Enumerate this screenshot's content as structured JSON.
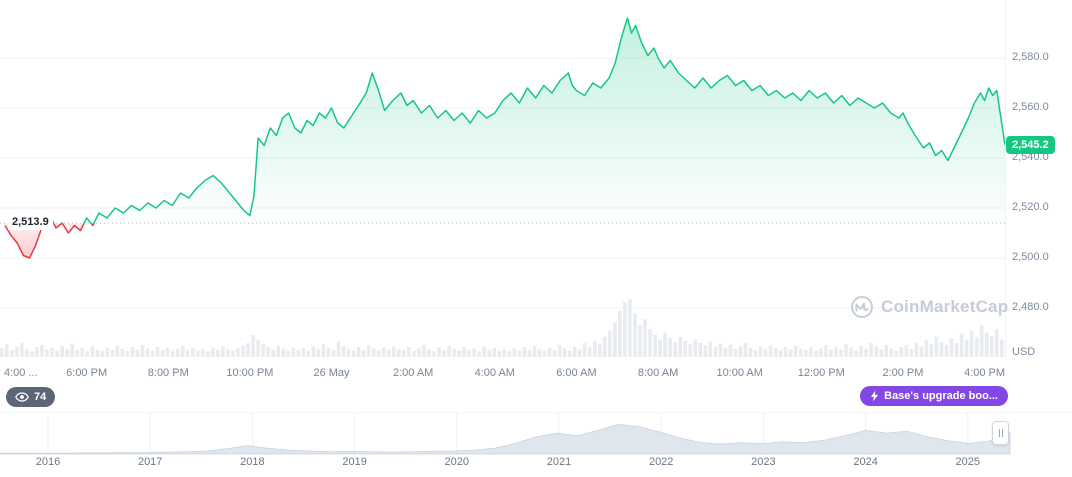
{
  "chart": {
    "open_price_label": "2,513.9",
    "current_price_label": "2,545.2",
    "currency_label": "USD"
  },
  "badges": {
    "views_count": "74",
    "annotation_label": "Base's upgrade boo..."
  },
  "watermark": "CoinMarketCap",
  "chart_data": {
    "type": "line",
    "title": "",
    "open_price": 2513.9,
    "current_price": 2545.2,
    "x_range_hours": [
      0,
      24.5
    ],
    "ylim": [
      2474,
      2598
    ],
    "colors": {
      "up": "#16c784",
      "down": "#ea3943",
      "open_line": "#b8bfca",
      "volume": "#e8ebf0",
      "navigator_fill": "#dfe6ee",
      "grid": "#f0f2f5"
    },
    "x_ticks": [
      {
        "hour": 0,
        "label": "4:00 ..."
      },
      {
        "hour": 2,
        "label": "6:00 PM"
      },
      {
        "hour": 4,
        "label": "8:00 PM"
      },
      {
        "hour": 6,
        "label": "10:00 PM"
      },
      {
        "hour": 8,
        "label": "26 May"
      },
      {
        "hour": 10,
        "label": "2:00 AM"
      },
      {
        "hour": 12,
        "label": "4:00 AM"
      },
      {
        "hour": 14,
        "label": "6:00 AM"
      },
      {
        "hour": 16,
        "label": "8:00 AM"
      },
      {
        "hour": 18,
        "label": "10:00 AM"
      },
      {
        "hour": 20,
        "label": "12:00 PM"
      },
      {
        "hour": 22,
        "label": "2:00 PM"
      },
      {
        "hour": 24,
        "label": "4:00 PM"
      }
    ],
    "y_ticks": [
      {
        "value": 2580,
        "label": "2,580.0"
      },
      {
        "value": 2560,
        "label": "2,560.0"
      },
      {
        "value": 2540,
        "label": "2,540.0"
      },
      {
        "value": 2520,
        "label": "2,520.0"
      },
      {
        "value": 2500,
        "label": "2,500.0"
      },
      {
        "value": 2480,
        "label": "2,480.0"
      }
    ],
    "series": [
      {
        "name": "price",
        "points": [
          [
            0,
            2513
          ],
          [
            0.15,
            2509
          ],
          [
            0.3,
            2506
          ],
          [
            0.45,
            2501
          ],
          [
            0.6,
            2500
          ],
          [
            0.75,
            2505
          ],
          [
            0.9,
            2512
          ],
          [
            1.0,
            2515
          ],
          [
            1.1,
            2517
          ],
          [
            1.25,
            2512
          ],
          [
            1.4,
            2514
          ],
          [
            1.55,
            2510
          ],
          [
            1.7,
            2513
          ],
          [
            1.85,
            2511
          ],
          [
            2.0,
            2516
          ],
          [
            2.15,
            2513
          ],
          [
            2.3,
            2518
          ],
          [
            2.5,
            2516
          ],
          [
            2.7,
            2520
          ],
          [
            2.9,
            2518
          ],
          [
            3.1,
            2521
          ],
          [
            3.3,
            2519
          ],
          [
            3.5,
            2522
          ],
          [
            3.7,
            2520
          ],
          [
            3.9,
            2523
          ],
          [
            4.1,
            2521
          ],
          [
            4.3,
            2526
          ],
          [
            4.5,
            2524
          ],
          [
            4.7,
            2528
          ],
          [
            4.9,
            2531
          ],
          [
            5.1,
            2533
          ],
          [
            5.3,
            2530
          ],
          [
            5.5,
            2526
          ],
          [
            5.7,
            2522
          ],
          [
            5.85,
            2519
          ],
          [
            6.0,
            2517
          ],
          [
            6.1,
            2525
          ],
          [
            6.2,
            2548
          ],
          [
            6.35,
            2545
          ],
          [
            6.5,
            2552
          ],
          [
            6.65,
            2549
          ],
          [
            6.8,
            2556
          ],
          [
            6.95,
            2558
          ],
          [
            7.1,
            2552
          ],
          [
            7.25,
            2550
          ],
          [
            7.4,
            2555
          ],
          [
            7.55,
            2553
          ],
          [
            7.7,
            2558
          ],
          [
            7.85,
            2556
          ],
          [
            8.0,
            2560
          ],
          [
            8.15,
            2554
          ],
          [
            8.3,
            2552
          ],
          [
            8.5,
            2557
          ],
          [
            8.7,
            2562
          ],
          [
            8.85,
            2566
          ],
          [
            9.0,
            2574
          ],
          [
            9.15,
            2567
          ],
          [
            9.3,
            2559
          ],
          [
            9.5,
            2563
          ],
          [
            9.7,
            2566
          ],
          [
            9.85,
            2561
          ],
          [
            10.0,
            2563
          ],
          [
            10.2,
            2558
          ],
          [
            10.4,
            2561
          ],
          [
            10.6,
            2556
          ],
          [
            10.8,
            2559
          ],
          [
            11.0,
            2555
          ],
          [
            11.2,
            2558
          ],
          [
            11.4,
            2554
          ],
          [
            11.6,
            2559
          ],
          [
            11.8,
            2556
          ],
          [
            12.0,
            2558
          ],
          [
            12.2,
            2563
          ],
          [
            12.4,
            2566
          ],
          [
            12.6,
            2562
          ],
          [
            12.8,
            2568
          ],
          [
            13.0,
            2564
          ],
          [
            13.2,
            2569
          ],
          [
            13.4,
            2566
          ],
          [
            13.6,
            2571
          ],
          [
            13.8,
            2574
          ],
          [
            13.9,
            2569
          ],
          [
            14.0,
            2567
          ],
          [
            14.2,
            2565
          ],
          [
            14.4,
            2570
          ],
          [
            14.6,
            2568
          ],
          [
            14.8,
            2572
          ],
          [
            14.95,
            2578
          ],
          [
            15.1,
            2588
          ],
          [
            15.25,
            2596
          ],
          [
            15.35,
            2590
          ],
          [
            15.45,
            2593
          ],
          [
            15.6,
            2586
          ],
          [
            15.75,
            2581
          ],
          [
            15.9,
            2584
          ],
          [
            16.0,
            2580
          ],
          [
            16.15,
            2576
          ],
          [
            16.3,
            2579
          ],
          [
            16.5,
            2574
          ],
          [
            16.7,
            2571
          ],
          [
            16.9,
            2568
          ],
          [
            17.1,
            2572
          ],
          [
            17.3,
            2568
          ],
          [
            17.5,
            2571
          ],
          [
            17.7,
            2573
          ],
          [
            17.9,
            2569
          ],
          [
            18.1,
            2571
          ],
          [
            18.3,
            2567
          ],
          [
            18.5,
            2569
          ],
          [
            18.7,
            2565
          ],
          [
            18.9,
            2567
          ],
          [
            19.1,
            2564
          ],
          [
            19.3,
            2566
          ],
          [
            19.5,
            2563
          ],
          [
            19.7,
            2567
          ],
          [
            19.9,
            2564
          ],
          [
            20.1,
            2566
          ],
          [
            20.3,
            2562
          ],
          [
            20.5,
            2565
          ],
          [
            20.7,
            2561
          ],
          [
            20.9,
            2564
          ],
          [
            21.1,
            2562
          ],
          [
            21.3,
            2560
          ],
          [
            21.5,
            2562
          ],
          [
            21.7,
            2558
          ],
          [
            21.9,
            2556
          ],
          [
            22.0,
            2558
          ],
          [
            22.15,
            2553
          ],
          [
            22.3,
            2549
          ],
          [
            22.5,
            2544
          ],
          [
            22.65,
            2546
          ],
          [
            22.8,
            2541
          ],
          [
            22.95,
            2543
          ],
          [
            23.1,
            2539
          ],
          [
            23.25,
            2544
          ],
          [
            23.4,
            2549
          ],
          [
            23.6,
            2556
          ],
          [
            23.75,
            2562
          ],
          [
            23.9,
            2566
          ],
          [
            24.0,
            2563
          ],
          [
            24.1,
            2568
          ],
          [
            24.2,
            2565
          ],
          [
            24.3,
            2567
          ],
          [
            24.4,
            2556
          ],
          [
            24.5,
            2545.2
          ]
        ]
      }
    ],
    "volume": [
      0.15,
      0.22,
      0.12,
      0.18,
      0.25,
      0.14,
      0.1,
      0.17,
      0.21,
      0.13,
      0.16,
      0.11,
      0.19,
      0.14,
      0.23,
      0.12,
      0.16,
      0.1,
      0.18,
      0.13,
      0.11,
      0.16,
      0.12,
      0.2,
      0.14,
      0.1,
      0.17,
      0.13,
      0.21,
      0.15,
      0.11,
      0.18,
      0.12,
      0.16,
      0.1,
      0.14,
      0.19,
      0.12,
      0.15,
      0.11,
      0.14,
      0.1,
      0.16,
      0.12,
      0.18,
      0.13,
      0.11,
      0.15,
      0.2,
      0.24,
      0.38,
      0.3,
      0.22,
      0.17,
      0.13,
      0.19,
      0.14,
      0.11,
      0.16,
      0.12,
      0.15,
      0.11,
      0.18,
      0.13,
      0.22,
      0.16,
      0.12,
      0.26,
      0.19,
      0.14,
      0.11,
      0.17,
      0.12,
      0.2,
      0.15,
      0.11,
      0.16,
      0.12,
      0.18,
      0.13,
      0.12,
      0.17,
      0.11,
      0.15,
      0.21,
      0.13,
      0.1,
      0.16,
      0.12,
      0.19,
      0.14,
      0.11,
      0.17,
      0.12,
      0.15,
      0.1,
      0.18,
      0.13,
      0.16,
      0.11,
      0.13,
      0.1,
      0.15,
      0.11,
      0.17,
      0.12,
      0.19,
      0.14,
      0.11,
      0.16,
      0.12,
      0.21,
      0.15,
      0.11,
      0.18,
      0.13,
      0.24,
      0.17,
      0.28,
      0.22,
      0.35,
      0.45,
      0.6,
      0.8,
      0.95,
      1.0,
      0.75,
      0.55,
      0.65,
      0.48,
      0.38,
      0.3,
      0.42,
      0.33,
      0.26,
      0.35,
      0.28,
      0.22,
      0.3,
      0.24,
      0.2,
      0.26,
      0.18,
      0.23,
      0.16,
      0.21,
      0.14,
      0.19,
      0.24,
      0.16,
      0.12,
      0.18,
      0.14,
      0.2,
      0.15,
      0.11,
      0.17,
      0.13,
      0.19,
      0.14,
      0.12,
      0.16,
      0.11,
      0.15,
      0.2,
      0.13,
      0.17,
      0.12,
      0.22,
      0.16,
      0.11,
      0.19,
      0.14,
      0.24,
      0.18,
      0.13,
      0.21,
      0.15,
      0.11,
      0.17,
      0.2,
      0.14,
      0.25,
      0.18,
      0.3,
      0.22,
      0.35,
      0.26,
      0.2,
      0.32,
      0.24,
      0.4,
      0.3,
      0.45,
      0.34,
      0.55,
      0.42,
      0.36,
      0.48,
      0.3
    ],
    "navigator": {
      "years": [
        "2016",
        "2017",
        "2018",
        "2019",
        "2020",
        "2021",
        "2022",
        "2023",
        "2024",
        "2025"
      ],
      "values": [
        0.02,
        0.02,
        0.02,
        0.02,
        0.03,
        0.03,
        0.04,
        0.04,
        0.05,
        0.06,
        0.08,
        0.14,
        0.22,
        0.15,
        0.1,
        0.08,
        0.06,
        0.07,
        0.06,
        0.05,
        0.06,
        0.07,
        0.08,
        0.1,
        0.15,
        0.28,
        0.45,
        0.55,
        0.48,
        0.62,
        0.78,
        0.72,
        0.58,
        0.42,
        0.3,
        0.26,
        0.3,
        0.27,
        0.32,
        0.3,
        0.36,
        0.48,
        0.62,
        0.55,
        0.6,
        0.45,
        0.35,
        0.28,
        0.34,
        0.55
      ]
    }
  }
}
